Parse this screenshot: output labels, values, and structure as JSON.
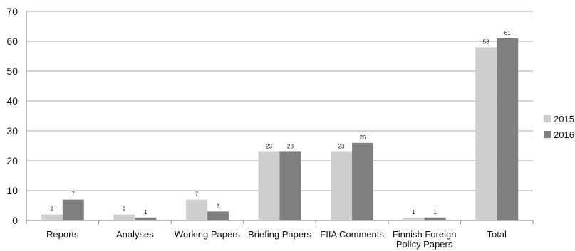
{
  "chart_data": {
    "type": "bar",
    "categories": [
      "Reports",
      "Analyses",
      "Working Papers",
      "Briefing Papers",
      "FIIA Comments",
      "Finnish Foreign Policy Papers",
      "Total"
    ],
    "series": [
      {
        "name": "2015",
        "values": [
          2,
          2,
          7,
          23,
          23,
          1,
          58
        ],
        "color": "#cfcfcf"
      },
      {
        "name": "2016",
        "values": [
          7,
          1,
          3,
          23,
          26,
          1,
          61
        ],
        "color": "#7f7f7f"
      }
    ],
    "ylim": [
      0,
      70
    ],
    "yticks": [
      0,
      10,
      20,
      30,
      40,
      50,
      60,
      70
    ],
    "grid": true,
    "legend_position": "right"
  }
}
